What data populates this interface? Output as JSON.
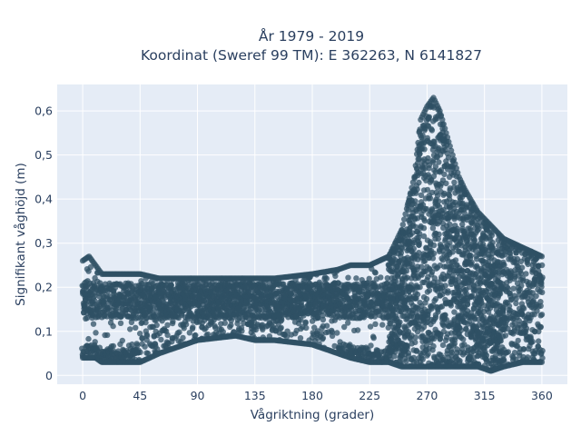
{
  "chart_data": {
    "type": "scatter",
    "title": [
      "År 1979 - 2019",
      "Koordinat (Sweref 99 TM): E 362263, N 6141827"
    ],
    "xlabel": "Vågriktning (grader)",
    "ylabel": "Signifikant våghöjd (m)",
    "xlim": [
      -20,
      380
    ],
    "ylim": [
      -0.02,
      0.66
    ],
    "xticks": [
      0,
      45,
      90,
      135,
      180,
      225,
      270,
      315,
      360
    ],
    "xtick_labels": [
      "0",
      "45",
      "90",
      "135",
      "180",
      "225",
      "270",
      "315",
      "360"
    ],
    "yticks": [
      0,
      0.1,
      0.2,
      0.3,
      0.4,
      0.5,
      0.6
    ],
    "ytick_labels": [
      "0",
      "0,1",
      "0,2",
      "0,3",
      "0,4",
      "0,5",
      "0,6"
    ],
    "grid": true,
    "legend": "none",
    "marker_color": "#2f5064",
    "background_color": "#e5ecf6",
    "envelope": {
      "x": [
        0,
        5,
        10,
        15,
        20,
        25,
        30,
        40,
        45,
        60,
        90,
        120,
        135,
        150,
        180,
        200,
        210,
        225,
        240,
        250,
        260,
        265,
        270,
        275,
        280,
        285,
        290,
        295,
        300,
        310,
        320,
        330,
        345,
        360
      ],
      "y_max": [
        0.26,
        0.27,
        0.25,
        0.23,
        0.23,
        0.23,
        0.23,
        0.23,
        0.23,
        0.22,
        0.22,
        0.22,
        0.22,
        0.22,
        0.23,
        0.24,
        0.25,
        0.25,
        0.27,
        0.33,
        0.45,
        0.58,
        0.61,
        0.63,
        0.6,
        0.55,
        0.5,
        0.45,
        0.42,
        0.37,
        0.34,
        0.31,
        0.29,
        0.27
      ],
      "y_min": [
        0.04,
        0.04,
        0.04,
        0.03,
        0.03,
        0.03,
        0.03,
        0.03,
        0.03,
        0.05,
        0.08,
        0.09,
        0.08,
        0.08,
        0.07,
        0.05,
        0.04,
        0.03,
        0.03,
        0.02,
        0.02,
        0.02,
        0.02,
        0.02,
        0.02,
        0.02,
        0.02,
        0.02,
        0.02,
        0.02,
        0.01,
        0.02,
        0.03,
        0.03
      ]
    },
    "main_band": {
      "y_min": 0.13,
      "y_max": 0.21
    }
  }
}
